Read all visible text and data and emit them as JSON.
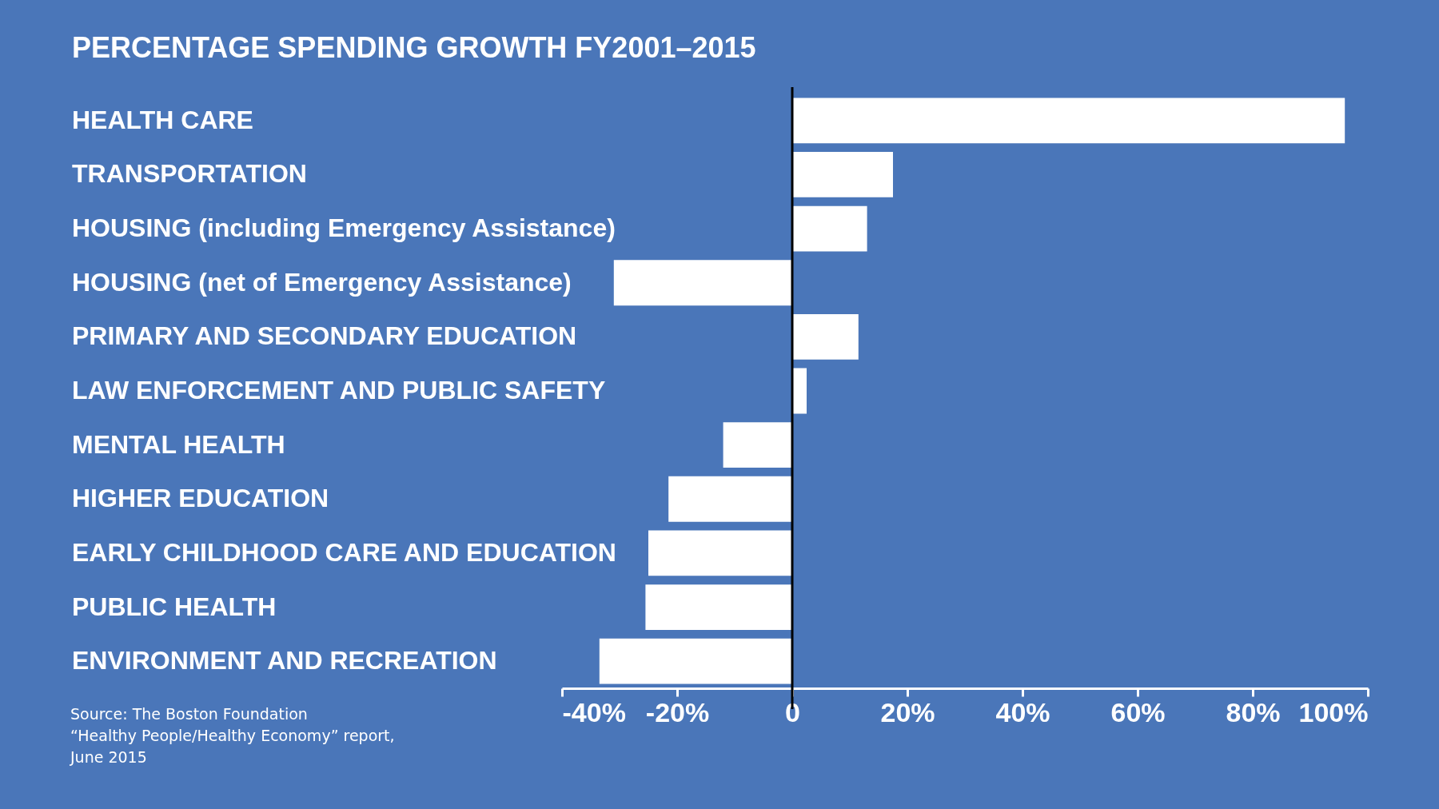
{
  "chart_data": {
    "type": "bar",
    "orientation": "horizontal",
    "title": "PERCENTAGE SPENDING GROWTH FY2001–2015",
    "categories": [
      "HEALTH CARE",
      "TRANSPORTATION",
      "HOUSING (including Emergency Assistance)",
      "HOUSING (net of Emergency Assistance)",
      "PRIMARY AND SECONDARY EDUCATION",
      "LAW ENFORCEMENT AND PUBLIC SAFETY",
      "MENTAL HEALTH",
      "HIGHER EDUCATION",
      "EARLY CHILDHOOD CARE AND EDUCATION",
      "PUBLIC HEALTH",
      "ENVIRONMENT AND RECREATION"
    ],
    "values": [
      96,
      17.5,
      13,
      -31,
      11.5,
      2.5,
      -12,
      -21.5,
      -25,
      -25.5,
      -33.5
    ],
    "color": "#ffffff",
    "xlim": [
      -40,
      100
    ],
    "xticks": [
      {
        "value": -40,
        "label": "-40%"
      },
      {
        "value": -20,
        "label": "-20%"
      },
      0,
      {
        "value": 20,
        "label": "20%"
      },
      {
        "value": 40,
        "label": "40%"
      },
      {
        "value": 60,
        "label": "60%"
      },
      {
        "value": 80,
        "label": "80%"
      },
      {
        "value": 100,
        "label": "100%"
      }
    ],
    "ref_lines": [
      {
        "axis": "x",
        "value": 0,
        "color": "#000000"
      }
    ],
    "grid": false,
    "annotations": [
      "Source: The Boston Foundation\n“Healthy People/Healthy Economy” report,\nJune 2015"
    ]
  }
}
